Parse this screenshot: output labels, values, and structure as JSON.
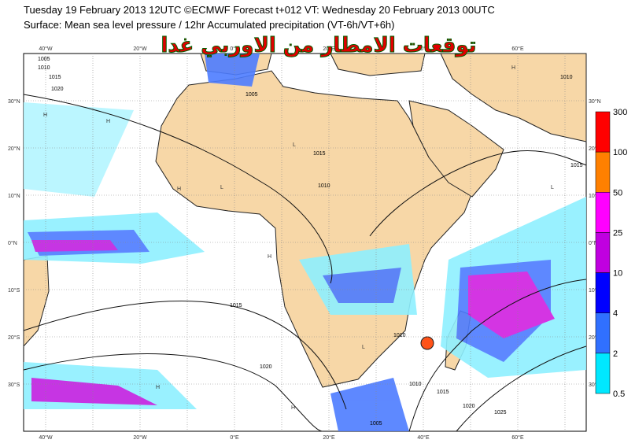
{
  "header": {
    "line1": "Tuesday 19 February 2013 12UTC ©ECMWF Forecast t+012 VT: Wednesday 20 February 2013 00UTC",
    "line2": "Surface: Mean sea level pressure / 12hr Accumulated precipitation (VT-6h/VT+6h)",
    "overlay_title": "توقعات الامطار من الاوربي غدا"
  },
  "map": {
    "lat_labels": [
      "30°N",
      "20°N",
      "10°N",
      "0°N",
      "10°S",
      "20°S",
      "30°S"
    ],
    "lon_labels": [
      "40°W",
      "20°W",
      "0°E",
      "20°E",
      "40°E",
      "60°E"
    ],
    "isobar_labels": [
      "1005",
      "1010",
      "1015",
      "1020",
      "1025"
    ],
    "pressure_centers": [
      "H",
      "L"
    ]
  },
  "colorbar": {
    "levels": [
      "300",
      "100",
      "50",
      "25",
      "10",
      "4",
      "2",
      "0.5"
    ],
    "colors": [
      "#ff0000",
      "#ff8000",
      "#ff00ff",
      "#c000e0",
      "#0000ff",
      "#3070ff",
      "#00e8ff"
    ]
  }
}
